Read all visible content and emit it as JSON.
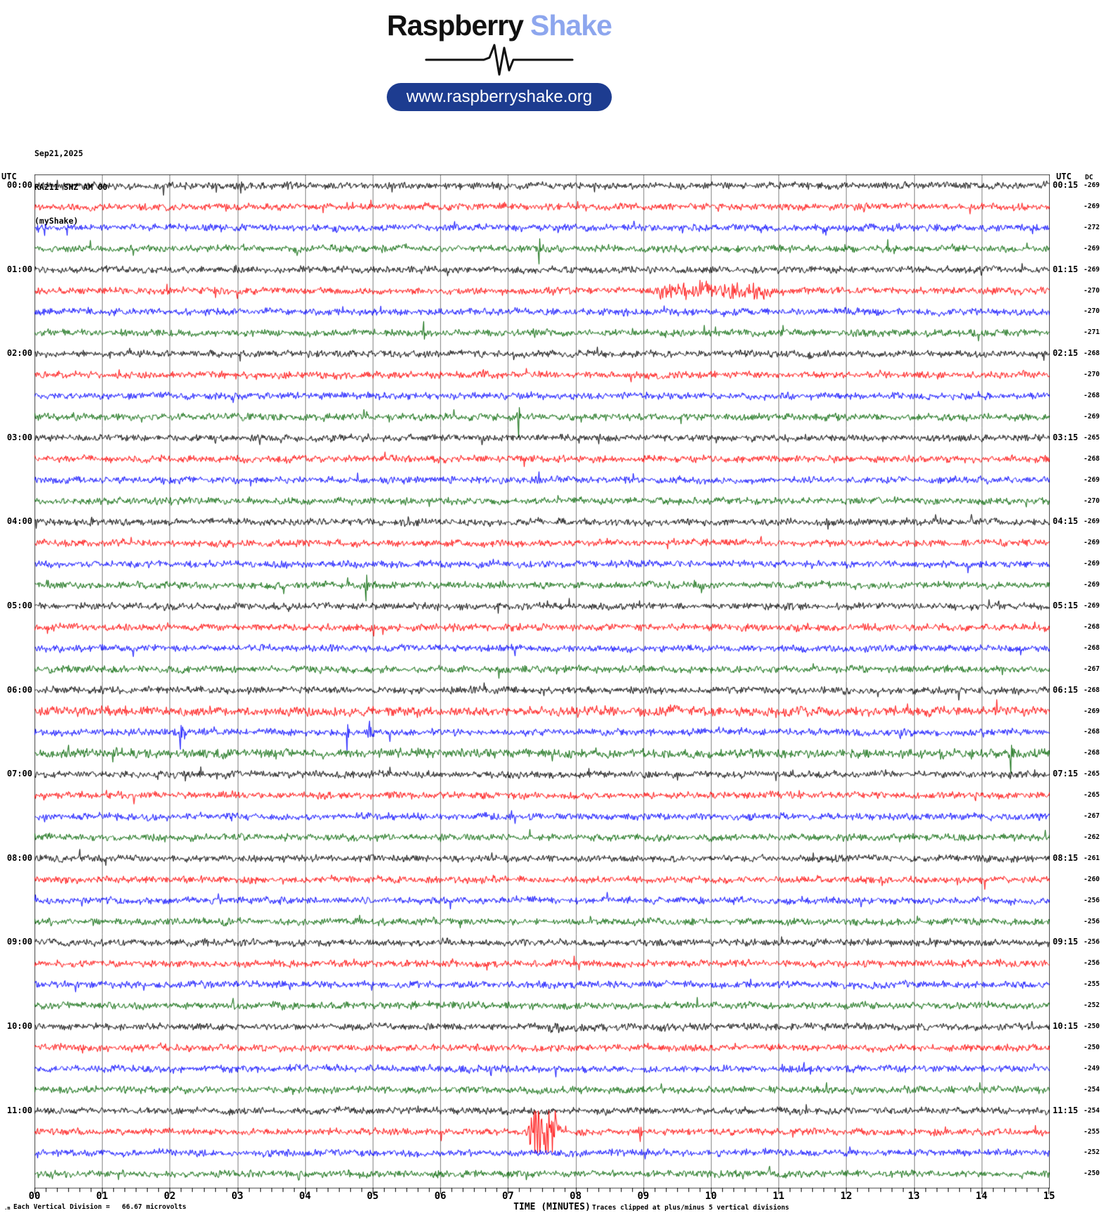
{
  "header": {
    "logo_primary": "Raspberry",
    "logo_secondary": "Shake",
    "url": "www.raspberryshake.org",
    "colors": {
      "logo_primary": "#111111",
      "logo_secondary": "#8da6ee",
      "pill_bg": "#1d3c90",
      "pill_text": "#ffffff"
    }
  },
  "info": {
    "date": "Sep21,2025",
    "station": "RA211 SHZ AM 00",
    "network": "(myShake)"
  },
  "axis": {
    "utc_left": "UTC",
    "utc_right": "UTC",
    "dc_header": "DC",
    "x_title": "TIME (MINUTES)",
    "x_ticks": [
      "00",
      "01",
      "02",
      "03",
      "04",
      "05",
      "06",
      "07",
      "08",
      "09",
      "10",
      "11",
      "12",
      "13",
      "14",
      "15"
    ],
    "footer_marker": ".m",
    "footer_left": "Each Vertical Division =   66.67 microvolts",
    "footer_right": "Traces clipped at plus/minus 5 vertical divisions"
  },
  "chart_data": {
    "type": "line",
    "subtype": "helicorder-seismogram",
    "title": "RA211 SHZ AM 00 helicorder, Sep21,2025, UTC 00:00-12:00",
    "xlabel": "TIME (MINUTES)",
    "x_range_minutes": [
      0,
      15
    ],
    "minutes_per_row": 15,
    "division_microvolts": 66.67,
    "clip_divisions": 5,
    "noise_amp_divisions": 0.6,
    "grid_color": "#808080",
    "border_color": "#444444",
    "trace_colors": {
      "black": "#000000",
      "red": "#ff0000",
      "blue": "#0000ff",
      "green": "#006400"
    },
    "rows": [
      {
        "color": "black",
        "left": "00:00",
        "right": "00:15",
        "dc": -269
      },
      {
        "color": "red",
        "dc": -269
      },
      {
        "color": "blue",
        "dc": -272
      },
      {
        "color": "green",
        "dc": -269
      },
      {
        "color": "black",
        "left": "01:00",
        "right": "01:15",
        "dc": -269
      },
      {
        "color": "red",
        "dc": -270
      },
      {
        "color": "blue",
        "dc": -270
      },
      {
        "color": "green",
        "dc": -271
      },
      {
        "color": "black",
        "left": "02:00",
        "right": "02:15",
        "dc": -268
      },
      {
        "color": "red",
        "dc": -270
      },
      {
        "color": "blue",
        "dc": -268
      },
      {
        "color": "green",
        "dc": -269
      },
      {
        "color": "black",
        "left": "03:00",
        "right": "03:15",
        "dc": -265
      },
      {
        "color": "red",
        "dc": -268
      },
      {
        "color": "blue",
        "dc": -269
      },
      {
        "color": "green",
        "dc": -270
      },
      {
        "color": "black",
        "left": "04:00",
        "right": "04:15",
        "dc": -269
      },
      {
        "color": "red",
        "dc": -269
      },
      {
        "color": "blue",
        "dc": -269
      },
      {
        "color": "green",
        "dc": -269
      },
      {
        "color": "black",
        "left": "05:00",
        "right": "05:15",
        "dc": -269
      },
      {
        "color": "red",
        "dc": -268
      },
      {
        "color": "blue",
        "dc": -268
      },
      {
        "color": "green",
        "dc": -267
      },
      {
        "color": "black",
        "left": "06:00",
        "right": "06:15",
        "dc": -268
      },
      {
        "color": "red",
        "dc": -269
      },
      {
        "color": "blue",
        "dc": -268
      },
      {
        "color": "green",
        "dc": -268
      },
      {
        "color": "black",
        "left": "07:00",
        "right": "07:15",
        "dc": -265
      },
      {
        "color": "red",
        "dc": -265
      },
      {
        "color": "blue",
        "dc": -267
      },
      {
        "color": "green",
        "dc": -262
      },
      {
        "color": "black",
        "left": "08:00",
        "right": "08:15",
        "dc": -261
      },
      {
        "color": "red",
        "dc": -260
      },
      {
        "color": "blue",
        "dc": -256
      },
      {
        "color": "green",
        "dc": -256
      },
      {
        "color": "black",
        "left": "09:00",
        "right": "09:15",
        "dc": -256
      },
      {
        "color": "red",
        "dc": -256
      },
      {
        "color": "blue",
        "dc": -255
      },
      {
        "color": "green",
        "dc": -252
      },
      {
        "color": "black",
        "left": "10:00",
        "right": "10:15",
        "dc": -250
      },
      {
        "color": "red",
        "dc": -250
      },
      {
        "color": "blue",
        "dc": -249
      },
      {
        "color": "green",
        "dc": -254
      },
      {
        "color": "black",
        "left": "11:00",
        "right": "11:15",
        "dc": -254
      },
      {
        "color": "red",
        "dc": -255
      },
      {
        "color": "blue",
        "dc": -252
      },
      {
        "color": "green",
        "dc": -250
      }
    ],
    "events": [
      {
        "row": 0,
        "type": "spike",
        "minute": 3.05,
        "amp": 2.0,
        "dir": 1
      },
      {
        "row": 3,
        "type": "spike",
        "minute": 1.25,
        "amp": 1.3,
        "dir": 1
      },
      {
        "row": 3,
        "type": "spike",
        "minute": 7.45,
        "amp": 3.6,
        "dir": 1
      },
      {
        "row": 5,
        "type": "burst",
        "start": 9.15,
        "end": 10.9,
        "amp": 2.4
      },
      {
        "row": 7,
        "type": "spike",
        "minute": 5.75,
        "amp": 2.6,
        "dir": -1
      },
      {
        "row": 11,
        "type": "spike",
        "minute": 7.15,
        "amp": 4.2,
        "dir": 1
      },
      {
        "row": 19,
        "type": "spike",
        "minute": 4.9,
        "amp": 3.8,
        "dir": 1
      },
      {
        "row": 25,
        "type": "burst",
        "start": 0,
        "end": 15,
        "amp": 1.35
      },
      {
        "row": 26,
        "type": "spike",
        "minute": 2.15,
        "amp": 3.6,
        "dir": 1
      },
      {
        "row": 26,
        "type": "spike",
        "minute": 4.62,
        "amp": 3.8,
        "dir": 1
      },
      {
        "row": 26,
        "type": "spike",
        "minute": 4.95,
        "amp": 3.4,
        "dir": -1
      },
      {
        "row": 26,
        "type": "spike",
        "minute": 12.8,
        "amp": 1.4,
        "dir": 1
      },
      {
        "row": 27,
        "type": "burst",
        "start": 0,
        "end": 15,
        "amp": 1.3
      },
      {
        "row": 27,
        "type": "spike",
        "minute": 1.15,
        "amp": 1.7,
        "dir": 1
      },
      {
        "row": 27,
        "type": "spike",
        "minute": 13.85,
        "amp": 1.6,
        "dir": 1
      },
      {
        "row": 27,
        "type": "spike",
        "minute": 14.43,
        "amp": 4.0,
        "dir": 1
      },
      {
        "row": 30,
        "type": "spike",
        "minute": 14.85,
        "amp": 1.7,
        "dir": 1
      },
      {
        "row": 40,
        "type": "burst",
        "start": 7.5,
        "end": 8.3,
        "amp": 1.6
      },
      {
        "row": 42,
        "type": "spike",
        "minute": 6.75,
        "amp": 1.6,
        "dir": 1
      },
      {
        "row": 42,
        "type": "spike",
        "minute": 7.7,
        "amp": 1.1,
        "dir": 1
      },
      {
        "row": 45,
        "type": "burst",
        "start": 7.25,
        "end": 7.8,
        "amp": 8
      },
      {
        "row": 45,
        "type": "spike",
        "minute": 8.95,
        "amp": 2.4,
        "dir": 1
      }
    ]
  }
}
